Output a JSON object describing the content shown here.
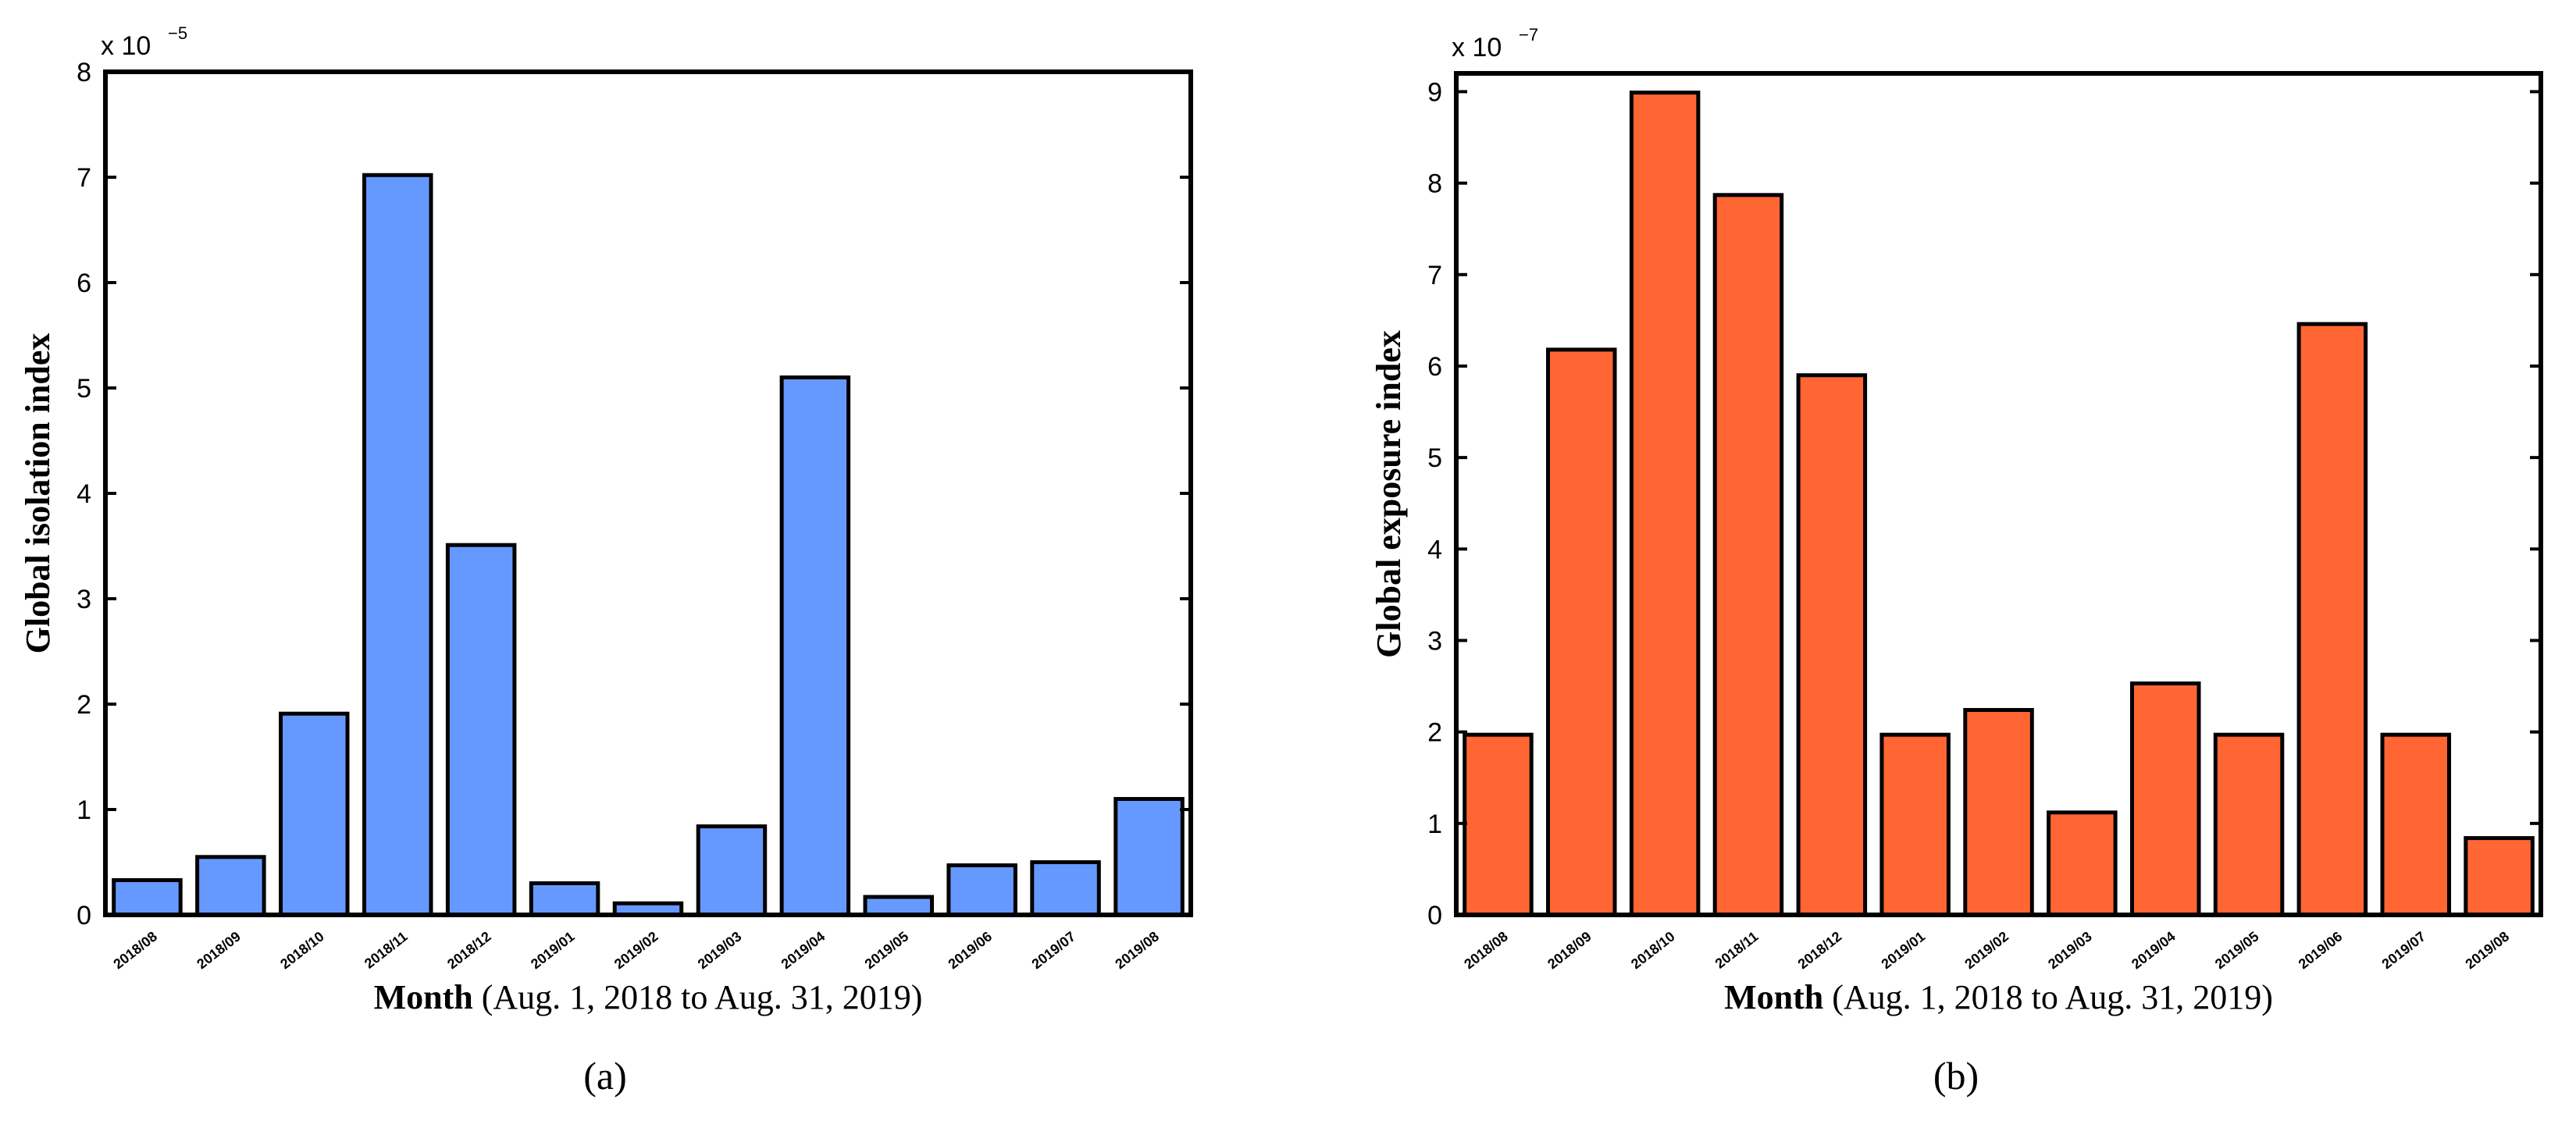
{
  "chart_data": [
    {
      "type": "bar",
      "panel_label": "(a)",
      "title": "",
      "ylabel": "Global isolation index",
      "xlabel_bold": "Month",
      "xlabel_rest": "(Aug. 1, 2018 to Aug. 31, 2019)",
      "multiplier": "x 10",
      "multiplier_exp": "−5",
      "ylim": [
        0,
        8
      ],
      "yticks": [
        0,
        1,
        2,
        3,
        4,
        5,
        6,
        7,
        8
      ],
      "categories": [
        "2018/08",
        "2018/09",
        "2018/10",
        "2018/11",
        "2018/12",
        "2019/01",
        "2019/02",
        "2019/03",
        "2019/04",
        "2019/05",
        "2019/06",
        "2019/07",
        "2019/08"
      ],
      "values": [
        0.33,
        0.55,
        1.91,
        7.02,
        3.51,
        0.3,
        0.11,
        0.84,
        5.1,
        0.17,
        0.47,
        0.5,
        1.1
      ],
      "color": "#6699ff"
    },
    {
      "type": "bar",
      "panel_label": "(b)",
      "title": "",
      "ylabel": "Global exposure index",
      "xlabel_bold": "Month",
      "xlabel_rest": "(Aug. 1, 2018 to Aug. 31, 2019)",
      "multiplier": "x 10",
      "multiplier_exp": "−7",
      "ylim": [
        0,
        9.2
      ],
      "yticks": [
        0,
        1,
        2,
        3,
        4,
        5,
        6,
        7,
        8,
        9
      ],
      "categories": [
        "2018/08",
        "2018/09",
        "2018/10",
        "2018/11",
        "2018/12",
        "2019/01",
        "2019/02",
        "2019/03",
        "2019/04",
        "2019/05",
        "2019/06",
        "2019/07",
        "2019/08"
      ],
      "values": [
        1.97,
        6.18,
        8.99,
        7.87,
        5.9,
        1.97,
        2.24,
        1.12,
        2.53,
        1.97,
        6.46,
        1.97,
        0.84
      ],
      "color": "#ff6633"
    }
  ]
}
